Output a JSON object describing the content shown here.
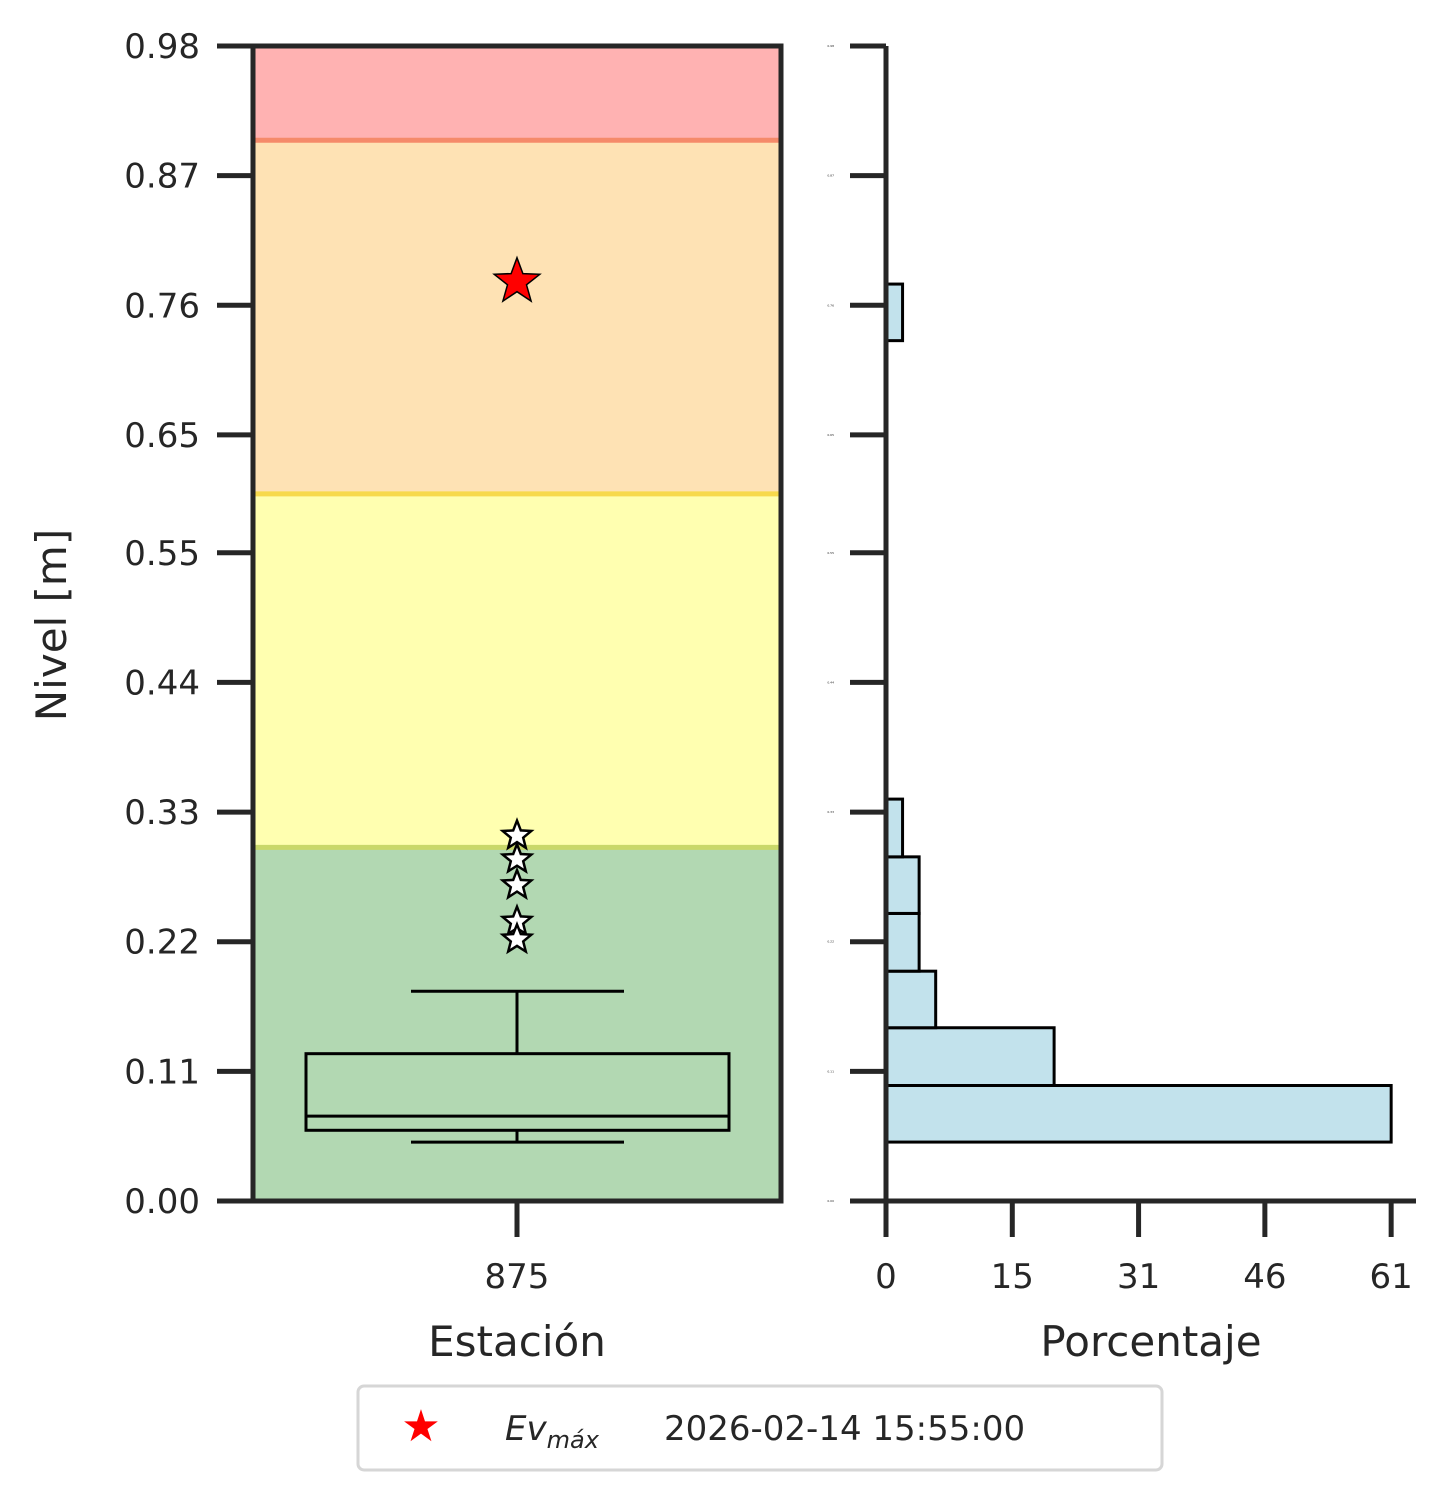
{
  "chart_data": [
    {
      "type": "boxplot",
      "xlabel": "Estación",
      "ylabel": "Nivel [m]",
      "x_tick_labels": [
        "875"
      ],
      "y_tick_labels": [
        "0.98",
        "0.87",
        "0.76",
        "0.65",
        "0.55",
        "0.44",
        "0.33",
        "0.22",
        "0.11",
        "0.00"
      ],
      "y_ticks": [
        0.98,
        0.87,
        0.76,
        0.65,
        0.55,
        0.44,
        0.33,
        0.22,
        0.11,
        0.0
      ],
      "ylim": [
        0.0,
        0.98
      ],
      "threshold_bands": [
        {
          "from": 0.0,
          "to": 0.3,
          "color": "#b2d8b2"
        },
        {
          "from": 0.3,
          "to": 0.6,
          "color": "#ffffb0"
        },
        {
          "from": 0.6,
          "to": 0.9,
          "color": "#fee2b4"
        },
        {
          "from": 0.9,
          "to": 0.98,
          "color": "#ffb2b2"
        }
      ],
      "threshold_lines": [
        {
          "y": 0.3,
          "color": "#c9d86a"
        },
        {
          "y": 0.6,
          "color": "#f7d94c"
        },
        {
          "y": 0.9,
          "color": "#f58a6a"
        }
      ],
      "box": {
        "whisker_low": 0.05,
        "q1": 0.06,
        "median": 0.072,
        "q3": 0.125,
        "whisker_high": 0.178
      },
      "outliers": [
        0.31,
        0.29,
        0.268,
        0.237,
        0.222
      ],
      "max_event": {
        "y": 0.78,
        "color": "#ff0000"
      }
    },
    {
      "type": "histogram",
      "orientation": "horizontal",
      "xlabel": "Porcentaje",
      "x_tick_labels": [
        "0",
        "15",
        "31",
        "46",
        "61"
      ],
      "x_ticks": [
        0,
        15.25,
        30.5,
        45.75,
        61
      ],
      "xlim": [
        0,
        64
      ],
      "y_tick_labels": [
        "0.98",
        "0.87",
        "0.76",
        "0.65",
        "0.55",
        "0.44",
        "0.33",
        "0.22",
        "0.11",
        "0.00"
      ],
      "bins": [
        {
          "from": 0.05,
          "to": 0.098,
          "value": 61
        },
        {
          "from": 0.098,
          "to": 0.147,
          "value": 20.3
        },
        {
          "from": 0.147,
          "to": 0.195,
          "value": 6
        },
        {
          "from": 0.195,
          "to": 0.244,
          "value": 4
        },
        {
          "from": 0.244,
          "to": 0.292,
          "value": 4
        },
        {
          "from": 0.292,
          "to": 0.341,
          "value": 2
        },
        {
          "from": 0.73,
          "to": 0.778,
          "value": 2
        }
      ],
      "bar_color": "#c2e2ec"
    }
  ],
  "legend": {
    "marker": "★",
    "marker_color": "#ff0000",
    "label_base": "Ev",
    "label_sub": "máx",
    "date": "2026-02-14 15:55:00"
  }
}
